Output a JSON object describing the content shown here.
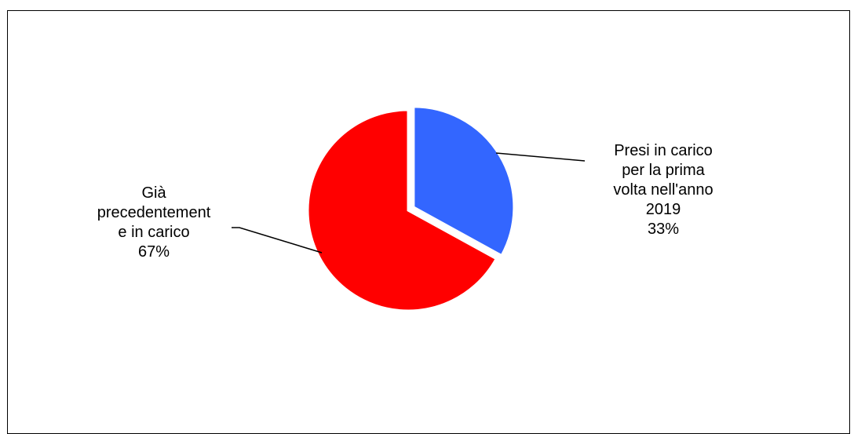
{
  "chart_data": {
    "type": "pie",
    "title": "",
    "slices": [
      {
        "label_lines": [
          "Presi in carico",
          "per la prima",
          "volta nell'anno",
          "2019",
          "33%"
        ],
        "value": 33,
        "color": "#3366FF"
      },
      {
        "label_lines": [
          "Già",
          "precedentement",
          "e in carico",
          "67%"
        ],
        "value": 67,
        "color": "#FF0000"
      }
    ]
  }
}
